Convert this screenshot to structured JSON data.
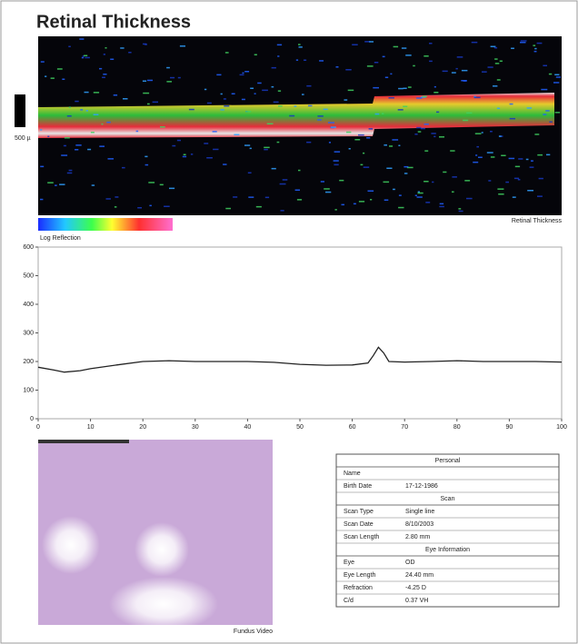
{
  "title": "Retinal Thickness",
  "oct_image": {
    "scale_label": "500 µ",
    "colorbar_label": "Log Reflection",
    "caption": "Retinal Thickness"
  },
  "chart_data": {
    "type": "line",
    "x": [
      0,
      3,
      5,
      8,
      10,
      15,
      20,
      25,
      30,
      35,
      40,
      45,
      50,
      55,
      60,
      63,
      64,
      65,
      66,
      67,
      70,
      75,
      80,
      85,
      90,
      95,
      100
    ],
    "values": [
      180,
      170,
      163,
      168,
      175,
      188,
      200,
      203,
      200,
      200,
      200,
      197,
      190,
      187,
      188,
      195,
      220,
      250,
      230,
      200,
      198,
      200,
      203,
      200,
      200,
      200,
      198
    ],
    "color": "#222222",
    "xlim": [
      0,
      100
    ],
    "xticks": [
      0,
      10,
      20,
      30,
      40,
      50,
      60,
      70,
      80,
      90,
      100
    ],
    "ylim": [
      0,
      600
    ],
    "yticks": [
      0,
      100,
      200,
      300,
      400,
      500,
      600
    ]
  },
  "fundus": {
    "caption": "Fundus Video"
  },
  "info_table": {
    "sections": [
      {
        "title": "Personal",
        "rows": [
          [
            "Name"
          ],
          [
            "Birth Date",
            "17-12-1986"
          ]
        ]
      },
      {
        "title": "Scan",
        "rows": [
          [
            "Scan Type",
            "Single line"
          ],
          [
            "Scan Date",
            "8/10/2003"
          ],
          [
            "Scan Length",
            "2.80 mm"
          ]
        ]
      },
      {
        "title": "Eye Information",
        "rows": [
          [
            "Eye",
            "OD"
          ],
          [
            "Eye Length",
            "24.40 mm"
          ],
          [
            "Refraction",
            "-4.25 D"
          ],
          [
            "C/d",
            "0.37 VH"
          ]
        ]
      }
    ]
  }
}
